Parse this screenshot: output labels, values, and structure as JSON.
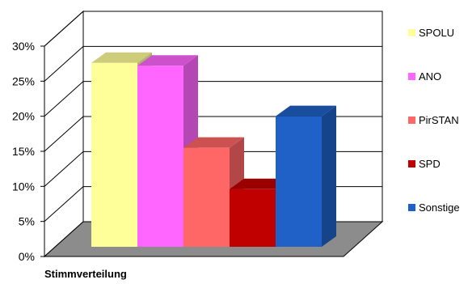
{
  "chart_data": {
    "type": "bar",
    "title": "",
    "xlabel": "",
    "ylabel": "",
    "categories": [
      "Stimmverteilung"
    ],
    "series": [
      {
        "name": "SPOLU",
        "values": [
          0.276
        ],
        "color": "#FFFF99"
      },
      {
        "name": "ANO",
        "values": [
          0.272
        ],
        "color": "#FF66FF"
      },
      {
        "name": "PirSTAN",
        "values": [
          0.155
        ],
        "color": "#FF6666"
      },
      {
        "name": "SPD",
        "values": [
          0.096
        ],
        "color": "#C00000"
      },
      {
        "name": "Sonstige",
        "values": [
          0.2
        ],
        "color": "#1F61C6"
      }
    ],
    "ylim": [
      0,
      0.3
    ],
    "yticks": [
      {
        "value": 0,
        "label": "0%"
      },
      {
        "value": 0.05,
        "label": "5%"
      },
      {
        "value": 0.1,
        "label": "10%"
      },
      {
        "value": 0.15,
        "label": "15%"
      },
      {
        "value": 0.2,
        "label": "20%"
      },
      {
        "value": 0.25,
        "label": "25%"
      },
      {
        "value": 0.3,
        "label": "30%"
      }
    ],
    "grid": true,
    "legend": "right",
    "three_d": true
  }
}
